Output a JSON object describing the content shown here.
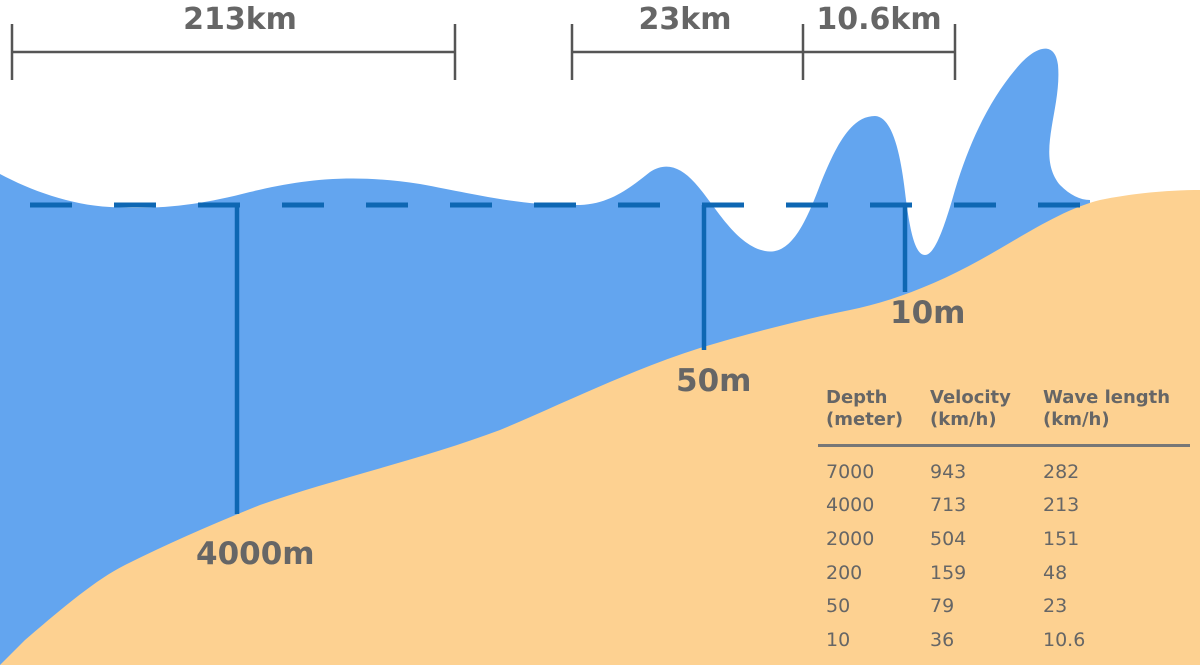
{
  "distances": {
    "d1": "213km",
    "d2": "23km",
    "d3": "10.6km"
  },
  "depths": {
    "deep": "4000m",
    "mid": "50m",
    "shallow": "10m"
  },
  "table": {
    "headers": [
      {
        "line1": "Depth",
        "line2": "(meter)"
      },
      {
        "line1": "Velocity",
        "line2": "(km/h)"
      },
      {
        "line1": "Wave length",
        "line2": "(km/h)"
      }
    ],
    "rows": [
      [
        "7000",
        "943",
        "282"
      ],
      [
        "4000",
        "713",
        "213"
      ],
      [
        "2000",
        "504",
        "151"
      ],
      [
        "200",
        "159",
        "48"
      ],
      [
        "50",
        "79",
        "23"
      ],
      [
        "10",
        "36",
        "10.6"
      ]
    ]
  },
  "colors": {
    "water": "#63a5ef",
    "sand": "#fdd191",
    "marker": "#0e67b3",
    "text": "#666666",
    "bracket": "#555555"
  }
}
